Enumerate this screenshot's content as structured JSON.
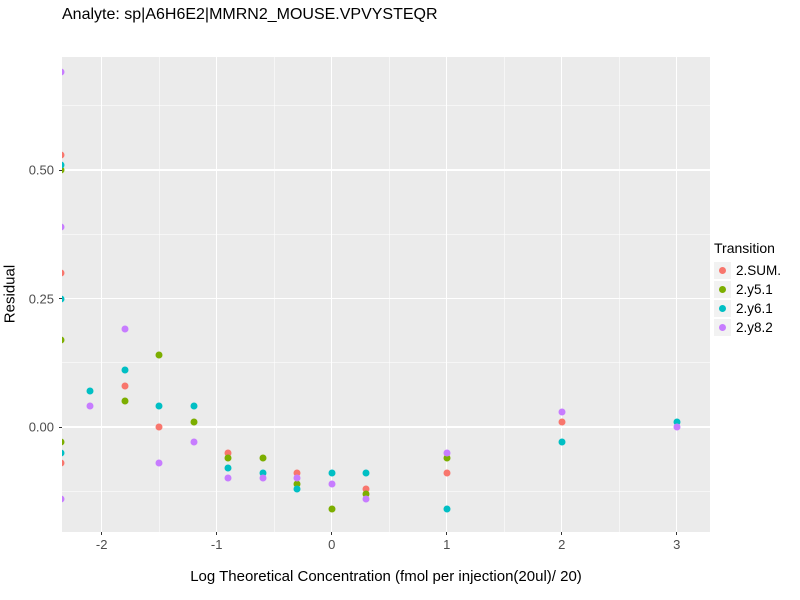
{
  "title": "Analyte: sp|A6H6E2|MMRN2_MOUSE.VPVYSTEQR",
  "colors": {
    "panel_background": "#EBEBEB",
    "grid_major": "#FFFFFF",
    "tick_text": "#4D4D4D",
    "series": {
      "2.SUM.": "#F8766D",
      "2.y5.1": "#7CAE00",
      "2.y6.1": "#00BFC4",
      "2.y8.2": "#C77CFF"
    }
  },
  "chart_data": {
    "type": "scatter",
    "title": "Analyte: sp|A6H6E2|MMRN2_MOUSE.VPVYSTEQR",
    "xlabel": "Log Theoretical Concentration (fmol per injection(20ul)/ 20)",
    "ylabel": "Residual",
    "xlim": [
      -2.35,
      3.29
    ],
    "ylim": [
      -0.204,
      0.72
    ],
    "grid": "on",
    "x_ticks": [
      {
        "label": "-2",
        "value": -2
      },
      {
        "label": "-1",
        "value": -1
      },
      {
        "label": "0",
        "value": 0
      },
      {
        "label": "1",
        "value": 1
      },
      {
        "label": "2",
        "value": 2
      },
      {
        "label": "3",
        "value": 3
      }
    ],
    "y_ticks": [
      {
        "label": "0.50",
        "value": 0.5
      },
      {
        "label": "0.25",
        "value": 0.25
      },
      {
        "label": "0.00",
        "value": 0.0
      }
    ],
    "x_minor_ticks": [
      -1.5,
      -0.5,
      0.5,
      1.5,
      2.5
    ],
    "y_minor_ticks": [
      0.625,
      0.375,
      0.125,
      -0.125
    ],
    "legend": {
      "title": "Transition",
      "position": "right"
    },
    "series": [
      {
        "name": "2.SUM.",
        "color": "#F8766D",
        "points": [
          [
            -2.35,
            0.53
          ],
          [
            -2.35,
            0.3
          ],
          [
            -2.35,
            -0.07
          ],
          [
            -1.8,
            0.08
          ],
          [
            -1.5,
            0.0
          ],
          [
            -0.9,
            -0.05
          ],
          [
            -0.3,
            -0.09
          ],
          [
            0.3,
            -0.12
          ],
          [
            1,
            -0.09
          ],
          [
            2,
            0.01
          ]
        ]
      },
      {
        "name": "2.y5.1",
        "color": "#7CAE00",
        "points": [
          [
            -2.35,
            0.5
          ],
          [
            -2.35,
            0.17
          ],
          [
            -2.35,
            -0.03
          ],
          [
            -1.8,
            0.05
          ],
          [
            -1.5,
            0.14
          ],
          [
            -1.2,
            0.01
          ],
          [
            -0.9,
            -0.06
          ],
          [
            -0.6,
            -0.06
          ],
          [
            -0.3,
            -0.11
          ],
          [
            0,
            -0.16
          ],
          [
            0.3,
            -0.13
          ],
          [
            1,
            -0.06
          ]
        ]
      },
      {
        "name": "2.y6.1",
        "color": "#00BFC4",
        "points": [
          [
            -2.35,
            0.51
          ],
          [
            -2.35,
            0.25
          ],
          [
            -2.35,
            -0.05
          ],
          [
            -2.1,
            0.07
          ],
          [
            -1.8,
            0.11
          ],
          [
            -1.5,
            0.04
          ],
          [
            -1.2,
            0.04
          ],
          [
            -0.9,
            -0.08
          ],
          [
            -0.6,
            -0.09
          ],
          [
            -0.3,
            -0.12
          ],
          [
            0,
            -0.09
          ],
          [
            0.3,
            -0.09
          ],
          [
            1,
            -0.16
          ],
          [
            2,
            -0.03
          ],
          [
            3,
            0.01
          ]
        ]
      },
      {
        "name": "2.y8.2",
        "color": "#C77CFF",
        "points": [
          [
            -2.35,
            0.69
          ],
          [
            -2.35,
            0.39
          ],
          [
            -2.35,
            -0.14
          ],
          [
            -2.1,
            0.04
          ],
          [
            -1.8,
            0.19
          ],
          [
            -1.5,
            -0.07
          ],
          [
            -1.2,
            -0.03
          ],
          [
            -0.9,
            -0.1
          ],
          [
            -0.6,
            -0.1
          ],
          [
            -0.3,
            -0.1
          ],
          [
            0,
            -0.11
          ],
          [
            0.3,
            -0.14
          ],
          [
            1,
            -0.05
          ],
          [
            2,
            0.03
          ],
          [
            3,
            0.0
          ]
        ]
      }
    ]
  }
}
